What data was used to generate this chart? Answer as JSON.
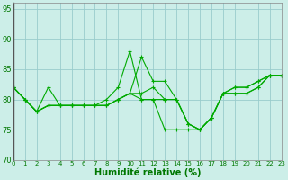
{
  "title": "",
  "xlabel": "Humidité relative (%)",
  "ylabel": "",
  "background_color": "#cceee8",
  "grid_color": "#99cccc",
  "line_color": "#00aa00",
  "xlim": [
    0,
    23
  ],
  "ylim": [
    70,
    96
  ],
  "yticks": [
    70,
    75,
    80,
    85,
    90,
    95
  ],
  "xticks": [
    0,
    1,
    2,
    3,
    4,
    5,
    6,
    7,
    8,
    9,
    10,
    11,
    12,
    13,
    14,
    15,
    16,
    17,
    18,
    19,
    20,
    21,
    22,
    23
  ],
  "series": {
    "line1": [
      82,
      80,
      78,
      82,
      79,
      79,
      79,
      79,
      80,
      82,
      88,
      80,
      80,
      75,
      75,
      75,
      75,
      77,
      81,
      82,
      82,
      83,
      84,
      84
    ],
    "line2": [
      82,
      80,
      78,
      79,
      79,
      79,
      79,
      79,
      79,
      80,
      81,
      81,
      82,
      80,
      80,
      76,
      75,
      77,
      81,
      81,
      81,
      82,
      84,
      84
    ],
    "line3": [
      82,
      80,
      78,
      79,
      79,
      79,
      79,
      79,
      79,
      80,
      81,
      87,
      83,
      83,
      80,
      76,
      75,
      77,
      81,
      81,
      81,
      82,
      84,
      84
    ],
    "line4": [
      82,
      80,
      78,
      79,
      79,
      79,
      79,
      79,
      79,
      80,
      81,
      80,
      80,
      80,
      80,
      76,
      75,
      77,
      81,
      82,
      82,
      83,
      84,
      84
    ]
  }
}
